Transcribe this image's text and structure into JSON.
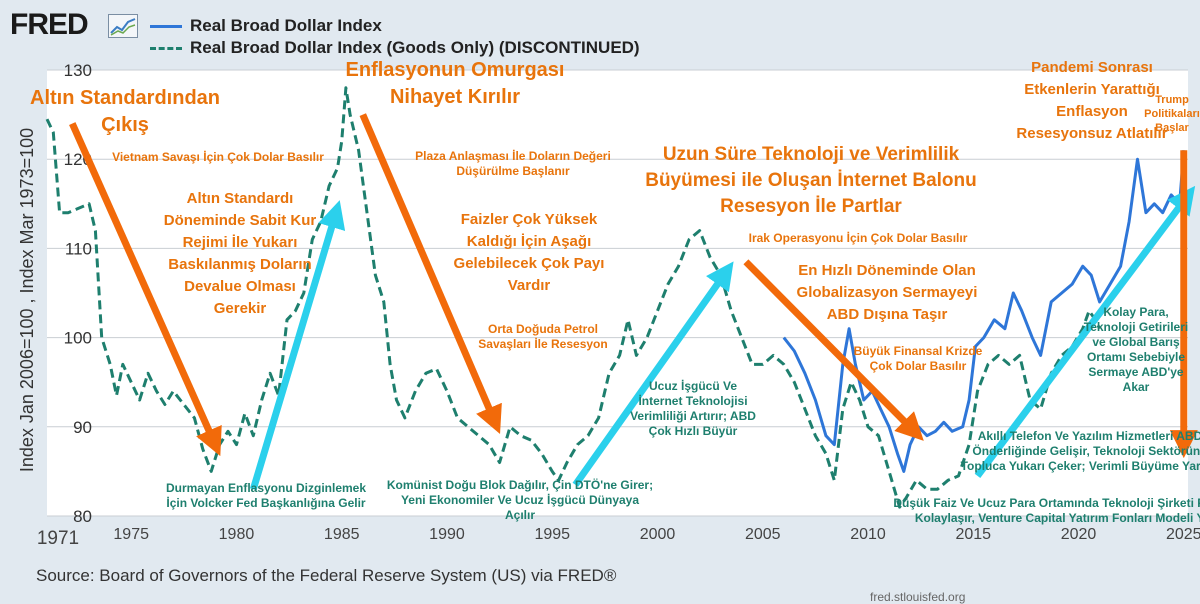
{
  "brand": {
    "logo_text": "FRED",
    "logo_mark": "fred-graph-icon"
  },
  "legend": [
    {
      "label": "Real Broad Dollar Index",
      "color": "#2e76d8",
      "style": "solid"
    },
    {
      "label": "Real Broad Dollar Index (Goods Only) (DISCONTINUED)",
      "color": "#1e7f6e",
      "style": "dashed"
    }
  ],
  "source": "Source: Board of Governors of the Federal Reserve System (US) via FRED®",
  "footer_url": "fred.stlouisfed.org",
  "chart_data": {
    "type": "line",
    "title": "",
    "ylabel": "Index Jan 2006=100 , Index Mar 1973=100",
    "xlabel": "",
    "xlim": [
      1971,
      2025.2
    ],
    "ylim": [
      80,
      130
    ],
    "x_ticks": [
      "1971",
      "1975",
      "1980",
      "1985",
      "1990",
      "1995",
      "2000",
      "2005",
      "2010",
      "2015",
      "2020",
      "2025"
    ],
    "y_ticks": [
      "80",
      "90",
      "100",
      "110",
      "120",
      "130"
    ],
    "series": [
      {
        "name": "Real Broad Dollar Index (Goods Only) (DISCONTINUED)",
        "color": "#1e7f6e",
        "style": "dashed",
        "points": [
          [
            1971.0,
            124.5
          ],
          [
            1971.3,
            123
          ],
          [
            1971.6,
            114
          ],
          [
            1972.0,
            114
          ],
          [
            1972.5,
            114.5
          ],
          [
            1973.0,
            115
          ],
          [
            1973.3,
            112
          ],
          [
            1973.6,
            100
          ],
          [
            1974.0,
            97
          ],
          [
            1974.3,
            93.5
          ],
          [
            1974.6,
            97
          ],
          [
            1975.0,
            95
          ],
          [
            1975.4,
            93
          ],
          [
            1975.8,
            96
          ],
          [
            1976.2,
            94
          ],
          [
            1976.6,
            92.5
          ],
          [
            1977.0,
            94
          ],
          [
            1977.5,
            92.5
          ],
          [
            1978.0,
            91
          ],
          [
            1978.4,
            87.5
          ],
          [
            1978.8,
            85
          ],
          [
            1979.2,
            88
          ],
          [
            1979.6,
            89.5
          ],
          [
            1980.0,
            88
          ],
          [
            1980.4,
            91.5
          ],
          [
            1980.8,
            89
          ],
          [
            1981.2,
            93
          ],
          [
            1981.6,
            96
          ],
          [
            1982.0,
            93.5
          ],
          [
            1982.4,
            102
          ],
          [
            1982.8,
            103
          ],
          [
            1983.2,
            105
          ],
          [
            1983.6,
            111
          ],
          [
            1984.0,
            113
          ],
          [
            1984.4,
            117
          ],
          [
            1984.8,
            119
          ],
          [
            1985.0,
            122
          ],
          [
            1985.2,
            128
          ],
          [
            1985.4,
            125
          ],
          [
            1985.8,
            121
          ],
          [
            1986.2,
            114
          ],
          [
            1986.6,
            107
          ],
          [
            1987.0,
            104
          ],
          [
            1987.3,
            97
          ],
          [
            1987.6,
            93
          ],
          [
            1988.0,
            91
          ],
          [
            1988.5,
            94
          ],
          [
            1989.0,
            96
          ],
          [
            1989.5,
            96.5
          ],
          [
            1990.0,
            94
          ],
          [
            1990.5,
            91
          ],
          [
            1991.0,
            90
          ],
          [
            1991.5,
            89
          ],
          [
            1992.0,
            88
          ],
          [
            1992.5,
            86
          ],
          [
            1993.0,
            90
          ],
          [
            1993.5,
            89
          ],
          [
            1994.0,
            88.5
          ],
          [
            1994.5,
            87
          ],
          [
            1995.0,
            85
          ],
          [
            1995.3,
            84
          ],
          [
            1995.7,
            86
          ],
          [
            1996.2,
            88
          ],
          [
            1996.7,
            89
          ],
          [
            1997.2,
            91
          ],
          [
            1997.7,
            96
          ],
          [
            1998.2,
            98
          ],
          [
            1998.6,
            102
          ],
          [
            1999.0,
            98
          ],
          [
            1999.5,
            100
          ],
          [
            2000.0,
            103
          ],
          [
            2000.5,
            106
          ],
          [
            2001.0,
            108
          ],
          [
            2001.5,
            111
          ],
          [
            2002.0,
            112
          ],
          [
            2002.5,
            109
          ],
          [
            2003.0,
            107
          ],
          [
            2003.5,
            103
          ],
          [
            2004.0,
            100
          ],
          [
            2004.5,
            97
          ],
          [
            2005.0,
            97
          ],
          [
            2005.5,
            98
          ],
          [
            2006.0,
            97
          ],
          [
            2006.5,
            95
          ],
          [
            2007.0,
            92
          ],
          [
            2007.5,
            89
          ],
          [
            2008.0,
            87
          ],
          [
            2008.4,
            84
          ],
          [
            2008.8,
            92
          ],
          [
            2009.2,
            95
          ],
          [
            2009.6,
            93
          ],
          [
            2010.0,
            90
          ],
          [
            2010.5,
            89
          ],
          [
            2011.0,
            85
          ],
          [
            2011.5,
            81
          ],
          [
            2011.8,
            82
          ],
          [
            2012.3,
            84
          ],
          [
            2012.8,
            83
          ],
          [
            2013.3,
            83
          ],
          [
            2013.8,
            84
          ],
          [
            2014.3,
            84.5
          ],
          [
            2014.8,
            88
          ],
          [
            2015.2,
            94
          ],
          [
            2015.7,
            97
          ],
          [
            2016.2,
            98
          ],
          [
            2016.7,
            97
          ],
          [
            2017.2,
            98
          ],
          [
            2017.7,
            93
          ],
          [
            2018.2,
            92
          ],
          [
            2018.7,
            96
          ],
          [
            2019.2,
            98
          ],
          [
            2019.7,
            99
          ],
          [
            2020.2,
            101
          ],
          [
            2020.5,
            103
          ],
          [
            2020.8,
            102
          ],
          [
            2021.0,
            101
          ]
        ]
      },
      {
        "name": "Real Broad Dollar Index",
        "color": "#2e76d8",
        "style": "solid",
        "points": [
          [
            2006.0,
            100
          ],
          [
            2006.5,
            98.5
          ],
          [
            2007.0,
            96
          ],
          [
            2007.5,
            93
          ],
          [
            2008.0,
            89
          ],
          [
            2008.4,
            88
          ],
          [
            2008.8,
            97
          ],
          [
            2009.1,
            101
          ],
          [
            2009.4,
            97
          ],
          [
            2009.8,
            93
          ],
          [
            2010.2,
            94
          ],
          [
            2010.6,
            92
          ],
          [
            2011.0,
            90
          ],
          [
            2011.4,
            87
          ],
          [
            2011.7,
            85
          ],
          [
            2012.0,
            88
          ],
          [
            2012.4,
            90
          ],
          [
            2012.8,
            89
          ],
          [
            2013.2,
            89.5
          ],
          [
            2013.6,
            90.5
          ],
          [
            2014.0,
            89.5
          ],
          [
            2014.5,
            90
          ],
          [
            2014.8,
            93
          ],
          [
            2015.1,
            99
          ],
          [
            2015.5,
            100
          ],
          [
            2016.0,
            102
          ],
          [
            2016.5,
            101
          ],
          [
            2016.9,
            105
          ],
          [
            2017.3,
            103
          ],
          [
            2017.8,
            100
          ],
          [
            2018.2,
            98
          ],
          [
            2018.7,
            104
          ],
          [
            2019.2,
            105
          ],
          [
            2019.7,
            106
          ],
          [
            2020.2,
            108
          ],
          [
            2020.6,
            107
          ],
          [
            2021.0,
            104
          ],
          [
            2021.5,
            106
          ],
          [
            2022.0,
            108
          ],
          [
            2022.4,
            113
          ],
          [
            2022.8,
            120
          ],
          [
            2023.2,
            114
          ],
          [
            2023.6,
            115
          ],
          [
            2024.0,
            114
          ],
          [
            2024.4,
            116
          ],
          [
            2024.8,
            115
          ],
          [
            2025.0,
            121
          ]
        ]
      }
    ]
  },
  "annotations": [
    {
      "id": "altin-standardi-cikis",
      "lines": [
        "Altın Standardından",
        "Çıkış"
      ],
      "color": "#e8740c",
      "size": "lg"
    },
    {
      "id": "vietnam",
      "lines": [
        "Vietnam Savaşı İçin Çok Dolar Basılır"
      ],
      "color": "#e8740c",
      "size": "sm"
    },
    {
      "id": "sabit-kur",
      "lines": [
        "Altın Standardı",
        "Döneminde Sabit Kur",
        "Rejimi İle Yukarı",
        "Baskılanmış Doların",
        "Devalue Olması",
        "Gerekir"
      ],
      "color": "#e8740c",
      "size": "md"
    },
    {
      "id": "volcker",
      "lines": [
        "Durmayan Enflasyonu Dizginlemek",
        "İçin Volcker Fed Başkanlığına Gelir"
      ],
      "color": "#1e7f6e",
      "size": "sm"
    },
    {
      "id": "enflasyon-omurga",
      "lines": [
        "Enflasyonun Omurgası",
        "Nihayet Kırılır"
      ],
      "color": "#e8740c",
      "size": "lg"
    },
    {
      "id": "plaza",
      "lines": [
        "Plaza Anlaşması İle Doların Değeri",
        "Düşürülme Başlanır"
      ],
      "color": "#e8740c",
      "size": "sm"
    },
    {
      "id": "faizler",
      "lines": [
        "Faizler Çok Yüksek",
        "Kaldığı İçin Aşağı",
        "Gelebilecek Çok Payı",
        "Vardır"
      ],
      "color": "#e8740c",
      "size": "md"
    },
    {
      "id": "orta-dogu",
      "lines": [
        "Orta Doğuda Petrol",
        "Savaşları İle Resesyon"
      ],
      "color": "#e8740c",
      "size": "sm"
    },
    {
      "id": "komunist",
      "lines": [
        "Komünist Doğu Blok Dağılır, Çin DTÖ'ne Girer;",
        "Yeni Ekonomiler Ve Ucuz İşgücü Dünyaya",
        "Açılır"
      ],
      "color": "#1e7f6e",
      "size": "sm"
    },
    {
      "id": "ucuz-isgucu",
      "lines": [
        "Ucuz İşgücü Ve",
        "İnternet Teknolojisi",
        "Verimliliği Artırır; ABD",
        "Çok Hızlı Büyür"
      ],
      "color": "#1e7f6e",
      "size": "sm"
    },
    {
      "id": "internet-balonu",
      "lines": [
        "Uzun Süre Teknoloji ve Verimlilik",
        "Büyümesi ile Oluşan İnternet Balonu",
        "Resesyon İle Partlar"
      ],
      "color": "#e8740c",
      "size": "lg2"
    },
    {
      "id": "irak",
      "lines": [
        "Irak Operasyonu İçin Çok Dolar Basılır"
      ],
      "color": "#e8740c",
      "size": "sm"
    },
    {
      "id": "globalizasyon",
      "lines": [
        "En Hızlı Döneminde Olan",
        "Globalizasyon Sermayeyi",
        "ABD Dışına Taşır"
      ],
      "color": "#e8740c",
      "size": "md"
    },
    {
      "id": "finansal-kriz",
      "lines": [
        "Büyük Finansal Krizde",
        "Çok Dolar Basılır"
      ],
      "color": "#e8740c",
      "size": "sm"
    },
    {
      "id": "pandemi",
      "lines": [
        "Pandemi Sonrası",
        "Etkenlerin Yarattığı",
        "Enflasyon",
        "Resesyonsuz Atlatılır"
      ],
      "color": "#e8740c",
      "size": "md"
    },
    {
      "id": "trump",
      "lines": [
        "Trump",
        "Politikaları",
        "Başlar"
      ],
      "color": "#e8740c",
      "size": "xs"
    },
    {
      "id": "kolay-para",
      "lines": [
        "Kolay Para,",
        "Teknoloji Getirileri",
        "ve Global Barış",
        "Ortamı Sebebiyle",
        "Sermaye ABD'ye",
        "Akar"
      ],
      "color": "#1e7f6e",
      "size": "sm"
    },
    {
      "id": "akilli-telefon",
      "lines": [
        "Akıllı Telefon Ve Yazılım Hizmetleri ABD",
        "Önderliğinde Gelişir, Teknoloji Sektörünü",
        "Topluca Yukarı Çeker; Verimli Büyüme Yaratır"
      ],
      "color": "#1e7f6e",
      "size": "sm"
    },
    {
      "id": "dusuk-faiz",
      "lines": [
        "Düşük Faiz Ve Ucuz Para Ortamında Teknoloji Şirketi Fonlamaları",
        "Kolaylaşır, Venture Capital Yatırım Fonları Modeli Yükselir"
      ],
      "color": "#1e7f6e",
      "size": "sm"
    }
  ],
  "arrows": [
    {
      "id": "arrow-1",
      "from": [
        1972.2,
        124
      ],
      "to": [
        1978.8,
        89
      ],
      "color": "#f26a0a"
    },
    {
      "id": "arrow-2",
      "from": [
        1980.8,
        83
      ],
      "to": [
        1984.6,
        113
      ],
      "color": "#2bd0ec"
    },
    {
      "id": "arrow-3",
      "from": [
        1986.0,
        125
      ],
      "to": [
        1992.1,
        91.5
      ],
      "color": "#f26a0a"
    },
    {
      "id": "arrow-4",
      "from": [
        1996.1,
        83.5
      ],
      "to": [
        2003.0,
        106.5
      ],
      "color": "#2bd0ec"
    },
    {
      "id": "arrow-5",
      "from": [
        2004.2,
        108.5
      ],
      "to": [
        2011.9,
        90.2
      ],
      "color": "#f26a0a"
    },
    {
      "id": "arrow-6",
      "from": [
        2015.2,
        84.5
      ],
      "to": [
        2024.9,
        115
      ],
      "color": "#2bd0ec"
    },
    {
      "id": "arrow-7",
      "from": [
        2025.0,
        121
      ],
      "to": [
        2025.0,
        89
      ],
      "color": "#f26a0a"
    }
  ]
}
